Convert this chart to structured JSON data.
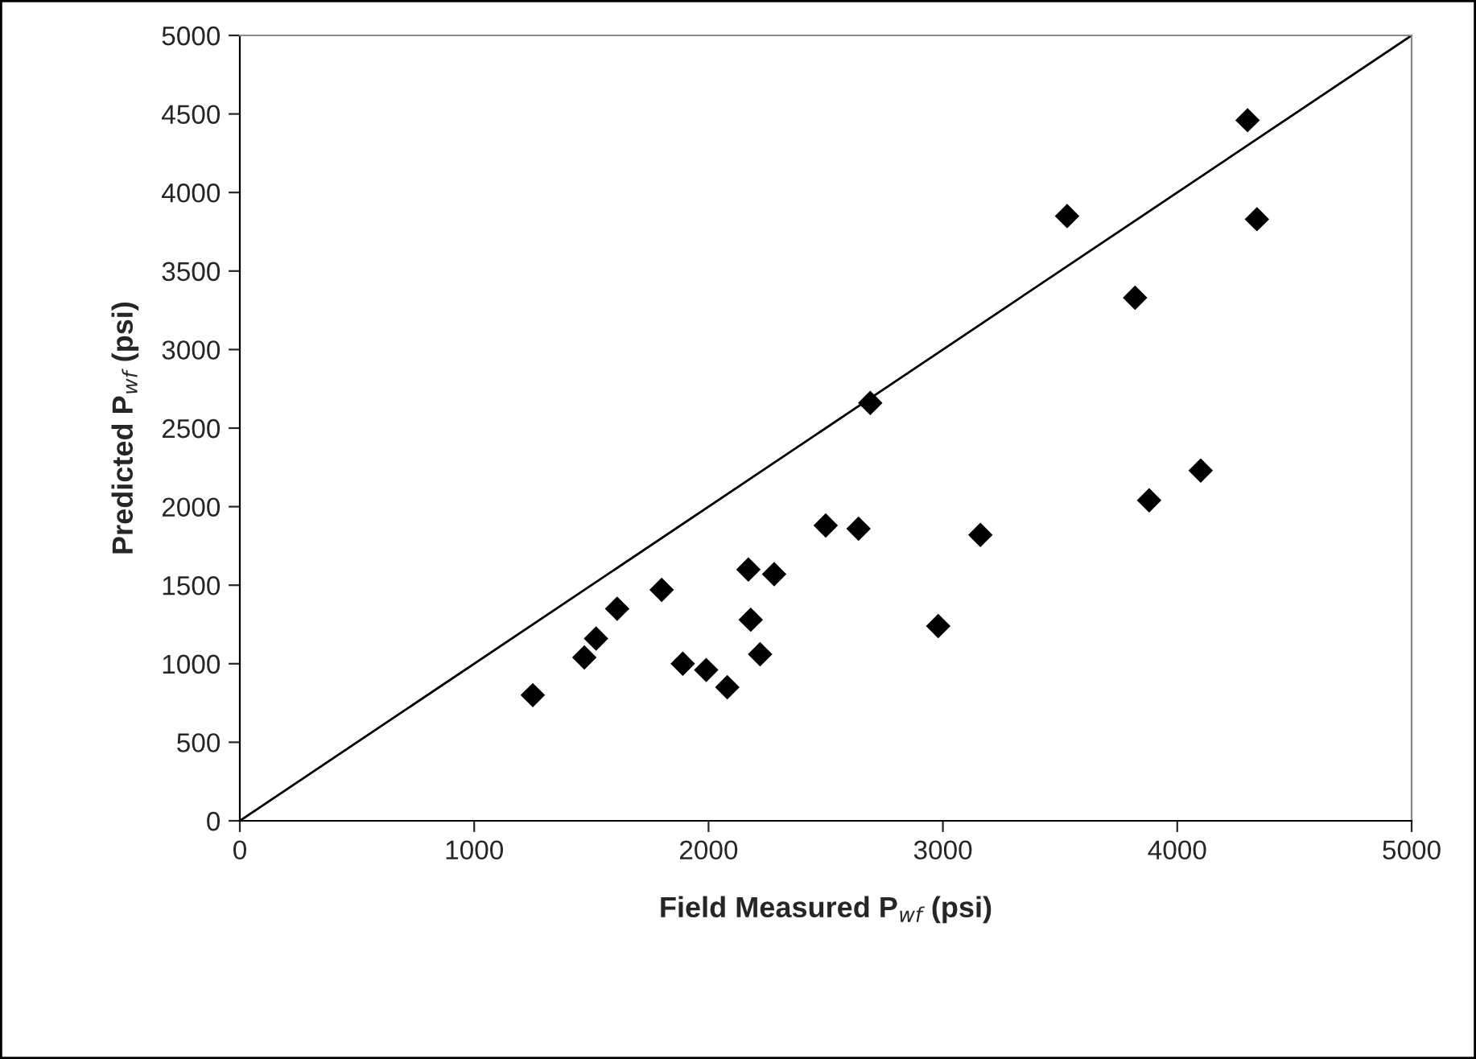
{
  "chart_data": {
    "type": "scatter",
    "xlabel": "Field Measured P$_{wf}$ (psi)",
    "ylabel": "Predicted P$_{wf}$ (psi)",
    "xlim": [
      0,
      5000
    ],
    "ylim": [
      0,
      5000
    ],
    "xticks": [
      0,
      1000,
      2000,
      3000,
      4000,
      5000
    ],
    "yticks": [
      0,
      500,
      1000,
      1500,
      2000,
      2500,
      3000,
      3500,
      4000,
      4500,
      5000
    ],
    "marker": "diamond",
    "grid": false,
    "legend": false,
    "series": [
      {
        "color": "#000000",
        "x": [
          1250,
          1470,
          1520,
          1610,
          1800,
          1890,
          1990,
          2080,
          2170,
          2180,
          2220,
          2280,
          2500,
          2640,
          2690,
          2980,
          3160,
          3530,
          3820,
          3880,
          4100,
          4300,
          4340
        ],
        "values": [
          800,
          1040,
          1160,
          1350,
          1470,
          1000,
          960,
          850,
          1600,
          1280,
          1060,
          1570,
          1880,
          1860,
          2660,
          1240,
          1820,
          3850,
          3330,
          2040,
          2230,
          4460,
          3830
        ]
      },
      {
        "type": "line",
        "color": "#000000",
        "x": [
          0,
          5000
        ],
        "values": [
          0,
          5000
        ],
        "marker": "none",
        "line_style": "solid"
      }
    ]
  }
}
